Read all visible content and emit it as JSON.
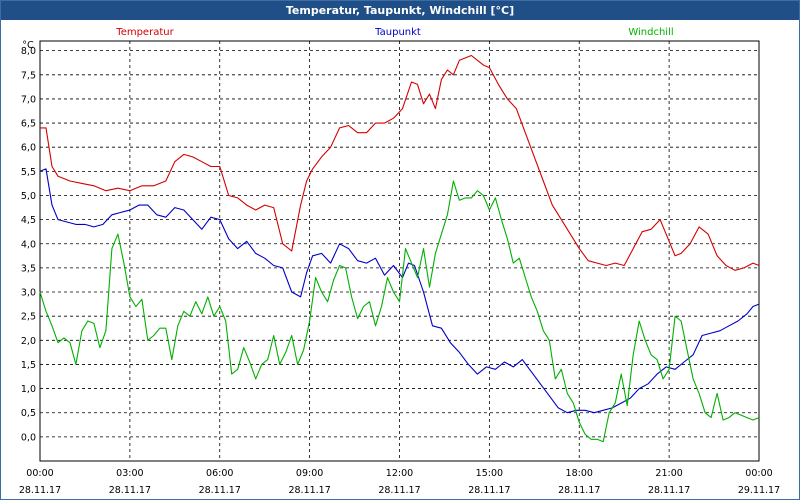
{
  "window": {
    "title": "Temperatur, Taupunkt, Windchill [°C]"
  },
  "chart_data": {
    "type": "line",
    "title": "Temperatur, Taupunkt, Windchill [°C]",
    "ylabel": "°C",
    "ylim": [
      -0.5,
      8.2
    ],
    "xlim": [
      0,
      24
    ],
    "grid": true,
    "legend_position": "top",
    "y_ticks": [
      "0,0",
      "0,5",
      "1,0",
      "1,5",
      "2,0",
      "2,5",
      "3,0",
      "3,5",
      "4,0",
      "4,5",
      "5,0",
      "5,5",
      "6,0",
      "6,5",
      "7,0",
      "7,5",
      "8,0"
    ],
    "x_ticks": [
      {
        "time": "00:00",
        "date": "28.11.17"
      },
      {
        "time": "03:00",
        "date": "28.11.17"
      },
      {
        "time": "06:00",
        "date": "28.11.17"
      },
      {
        "time": "09:00",
        "date": "28.11.17"
      },
      {
        "time": "12:00",
        "date": "28.11.17"
      },
      {
        "time": "15:00",
        "date": "28.11.17"
      },
      {
        "time": "18:00",
        "date": "28.11.17"
      },
      {
        "time": "21:00",
        "date": "28.11.17"
      },
      {
        "time": "00:00",
        "date": "29.11.17"
      }
    ],
    "series": [
      {
        "name": "Temperatur",
        "color": "#d40000",
        "x": [
          0,
          0.2,
          0.4,
          0.6,
          1,
          1.4,
          1.8,
          2.2,
          2.6,
          3.0,
          3.4,
          3.8,
          4.2,
          4.5,
          4.8,
          5.1,
          5.4,
          5.7,
          6.0,
          6.3,
          6.6,
          6.9,
          7.2,
          7.5,
          7.8,
          8.1,
          8.4,
          8.7,
          8.9,
          9.1,
          9.4,
          9.7,
          10.0,
          10.3,
          10.6,
          10.9,
          11.2,
          11.5,
          11.8,
          12.1,
          12.4,
          12.6,
          12.8,
          13.0,
          13.2,
          13.4,
          13.6,
          13.8,
          14.0,
          14.2,
          14.4,
          14.6,
          14.8,
          15.0,
          15.3,
          15.6,
          15.9,
          16.2,
          16.5,
          16.8,
          17.1,
          17.4,
          17.7,
          18.0,
          18.3,
          18.6,
          18.9,
          19.2,
          19.5,
          19.8,
          20.1,
          20.4,
          20.7,
          21.0,
          21.2,
          21.4,
          21.7,
          22.0,
          22.3,
          22.6,
          22.9,
          23.2,
          23.5,
          23.8,
          24.0
        ],
        "values": [
          6.4,
          6.4,
          5.6,
          5.4,
          5.3,
          5.25,
          5.2,
          5.1,
          5.15,
          5.1,
          5.2,
          5.2,
          5.3,
          5.7,
          5.85,
          5.8,
          5.7,
          5.6,
          5.6,
          5.0,
          4.95,
          4.8,
          4.7,
          4.8,
          4.75,
          4.0,
          3.85,
          4.8,
          5.3,
          5.55,
          5.8,
          6.0,
          6.4,
          6.45,
          6.3,
          6.3,
          6.5,
          6.5,
          6.6,
          6.8,
          7.35,
          7.3,
          6.9,
          7.1,
          6.8,
          7.4,
          7.6,
          7.5,
          7.8,
          7.85,
          7.9,
          7.8,
          7.7,
          7.65,
          7.3,
          7.0,
          6.8,
          6.3,
          5.8,
          5.3,
          4.8,
          4.5,
          4.2,
          3.9,
          3.65,
          3.6,
          3.55,
          3.6,
          3.55,
          3.9,
          4.25,
          4.3,
          4.5,
          4.05,
          3.75,
          3.8,
          4.0,
          4.35,
          4.2,
          3.75,
          3.55,
          3.45,
          3.5,
          3.6,
          3.55
        ]
      },
      {
        "name": "Taupunkt",
        "color": "#0000c8",
        "x": [
          0,
          0.2,
          0.4,
          0.6,
          0.9,
          1.2,
          1.5,
          1.8,
          2.1,
          2.4,
          2.7,
          3.0,
          3.3,
          3.6,
          3.9,
          4.2,
          4.5,
          4.8,
          5.1,
          5.4,
          5.7,
          6.0,
          6.3,
          6.6,
          6.9,
          7.2,
          7.5,
          7.8,
          8.1,
          8.4,
          8.7,
          8.9,
          9.1,
          9.4,
          9.7,
          10.0,
          10.3,
          10.6,
          10.9,
          11.2,
          11.5,
          11.8,
          12.1,
          12.3,
          12.5,
          12.8,
          13.1,
          13.4,
          13.7,
          14.0,
          14.3,
          14.6,
          14.9,
          15.2,
          15.5,
          15.8,
          16.1,
          16.4,
          16.7,
          17.0,
          17.3,
          17.6,
          17.9,
          18.2,
          18.5,
          18.8,
          19.1,
          19.4,
          19.7,
          20.0,
          20.3,
          20.6,
          20.9,
          21.2,
          21.5,
          21.8,
          22.1,
          22.4,
          22.7,
          23.0,
          23.3,
          23.6,
          23.8,
          24.0
        ],
        "values": [
          5.5,
          5.55,
          4.8,
          4.5,
          4.45,
          4.4,
          4.4,
          4.35,
          4.4,
          4.6,
          4.65,
          4.7,
          4.8,
          4.8,
          4.6,
          4.55,
          4.75,
          4.7,
          4.5,
          4.3,
          4.55,
          4.5,
          4.1,
          3.9,
          4.05,
          3.8,
          3.7,
          3.55,
          3.5,
          3.0,
          2.9,
          3.4,
          3.75,
          3.8,
          3.6,
          4.0,
          3.9,
          3.65,
          3.6,
          3.7,
          3.35,
          3.55,
          3.3,
          3.6,
          3.55,
          3.0,
          2.3,
          2.25,
          1.95,
          1.75,
          1.5,
          1.3,
          1.45,
          1.4,
          1.55,
          1.45,
          1.6,
          1.35,
          1.1,
          0.85,
          0.6,
          0.5,
          0.55,
          0.55,
          0.5,
          0.55,
          0.6,
          0.7,
          0.8,
          1.0,
          1.1,
          1.3,
          1.45,
          1.4,
          1.55,
          1.7,
          2.1,
          2.15,
          2.2,
          2.3,
          2.4,
          2.55,
          2.7,
          2.75
        ]
      },
      {
        "name": "Windchill",
        "color": "#00b000",
        "x": [
          0,
          0.2,
          0.4,
          0.6,
          0.8,
          1.0,
          1.2,
          1.4,
          1.6,
          1.8,
          2.0,
          2.2,
          2.4,
          2.6,
          2.8,
          3.0,
          3.2,
          3.4,
          3.6,
          3.8,
          4.0,
          4.2,
          4.4,
          4.6,
          4.8,
          5.0,
          5.2,
          5.4,
          5.6,
          5.8,
          6.0,
          6.2,
          6.4,
          6.6,
          6.8,
          7.0,
          7.2,
          7.4,
          7.6,
          7.8,
          8.0,
          8.2,
          8.4,
          8.6,
          8.8,
          9.0,
          9.2,
          9.4,
          9.6,
          9.8,
          10.0,
          10.2,
          10.4,
          10.6,
          10.8,
          11.0,
          11.2,
          11.4,
          11.6,
          11.8,
          12.0,
          12.2,
          12.4,
          12.6,
          12.8,
          13.0,
          13.2,
          13.4,
          13.6,
          13.8,
          14.0,
          14.2,
          14.4,
          14.6,
          14.8,
          15.0,
          15.2,
          15.4,
          15.6,
          15.8,
          16.0,
          16.2,
          16.4,
          16.6,
          16.8,
          17.0,
          17.2,
          17.4,
          17.6,
          17.8,
          18.0,
          18.2,
          18.4,
          18.6,
          18.8,
          19.0,
          19.2,
          19.4,
          19.6,
          19.8,
          20.0,
          20.2,
          20.4,
          20.6,
          20.8,
          21.0,
          21.2,
          21.4,
          21.6,
          21.8,
          22.0,
          22.2,
          22.4,
          22.6,
          22.8,
          23.0,
          23.2,
          23.4,
          23.6,
          23.8,
          24.0
        ],
        "values": [
          3.0,
          2.6,
          2.3,
          1.95,
          2.05,
          1.95,
          1.5,
          2.2,
          2.4,
          2.35,
          1.85,
          2.2,
          3.9,
          4.2,
          3.6,
          2.9,
          2.7,
          2.85,
          2.0,
          2.1,
          2.25,
          2.25,
          1.6,
          2.3,
          2.6,
          2.5,
          2.8,
          2.55,
          2.9,
          2.5,
          2.7,
          2.4,
          1.3,
          1.4,
          1.85,
          1.55,
          1.2,
          1.5,
          1.6,
          2.1,
          1.5,
          1.75,
          2.1,
          1.5,
          1.8,
          2.4,
          3.3,
          3.0,
          2.8,
          3.25,
          3.55,
          3.5,
          2.9,
          2.45,
          2.7,
          2.8,
          2.3,
          2.7,
          3.3,
          3.0,
          2.8,
          3.9,
          3.6,
          3.3,
          3.9,
          3.1,
          3.8,
          4.2,
          4.6,
          5.3,
          4.9,
          4.95,
          4.95,
          5.1,
          5.0,
          4.7,
          4.95,
          4.5,
          4.1,
          3.6,
          3.7,
          3.3,
          2.9,
          2.6,
          2.2,
          2.0,
          1.2,
          1.4,
          0.9,
          0.7,
          0.3,
          0.05,
          -0.05,
          -0.05,
          -0.1,
          0.5,
          0.7,
          1.3,
          0.65,
          1.7,
          2.4,
          2.0,
          1.7,
          1.6,
          1.2,
          1.4,
          2.5,
          2.4,
          1.8,
          1.2,
          0.9,
          0.5,
          0.4,
          0.9,
          0.35,
          0.4,
          0.5,
          0.45,
          0.4,
          0.35,
          0.4
        ]
      }
    ]
  }
}
